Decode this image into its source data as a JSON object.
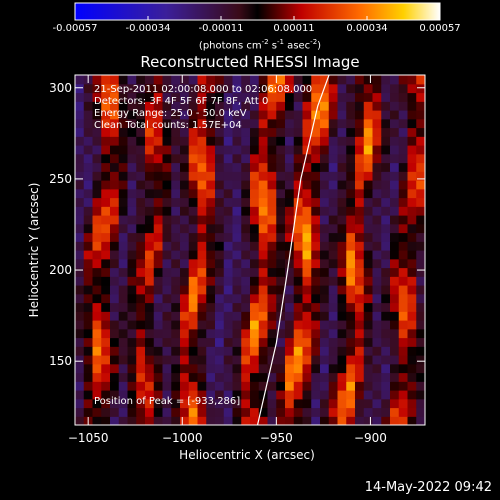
{
  "chart_data": {
    "type": "heatmap",
    "title": "Reconstructed RHESSI Image",
    "xlabel": "Heliocentric X (arcsec)",
    "ylabel": "Heliocentric Y (arcsec)",
    "xlim": [
      -1057,
      -871
    ],
    "ylim": [
      115,
      307
    ],
    "x_ticks": [
      -1050,
      -1000,
      -950,
      -900
    ],
    "y_ticks": [
      150,
      200,
      250,
      300
    ],
    "colorbar": {
      "ticks": [
        "-0.00057",
        "-0.00034",
        "-0.00011",
        "0.00011",
        "0.00034",
        "0.00057"
      ],
      "unit_parts": [
        "(photons cm",
        "-2",
        " s",
        "-1",
        " asec",
        "-2",
        ")"
      ],
      "range": [
        -0.00057,
        0.00057
      ]
    },
    "annotations": [
      "21-Sep-2011 02:00:08.000 to 02:06:08.000",
      "Detectors: 3F 4F 5F 6F 7F 8F, Att 0",
      "Energy Range: 25.0 - 50.0 keV",
      "Clean     Total counts: 1.57E+04",
      "Position of Peak = [-933,286]"
    ],
    "bands": [
      {
        "x": -1043,
        "amp": 0.00048
      },
      {
        "x": -1018,
        "amp": 0.0004
      },
      {
        "x": -992,
        "amp": 0.0005
      },
      {
        "x": -958,
        "amp": 0.00054
      },
      {
        "x": -935,
        "amp": 0.00057
      },
      {
        "x": -908,
        "amp": 0.00052
      },
      {
        "x": -880,
        "amp": 0.00046
      }
    ],
    "limb": [
      [
        -960,
        115
      ],
      [
        -950,
        160
      ],
      [
        -944,
        200
      ],
      [
        -937,
        250
      ],
      [
        -928,
        290
      ],
      [
        -922,
        307
      ]
    ]
  },
  "footer": {
    "timestamp": "14-May-2022 09:42"
  }
}
